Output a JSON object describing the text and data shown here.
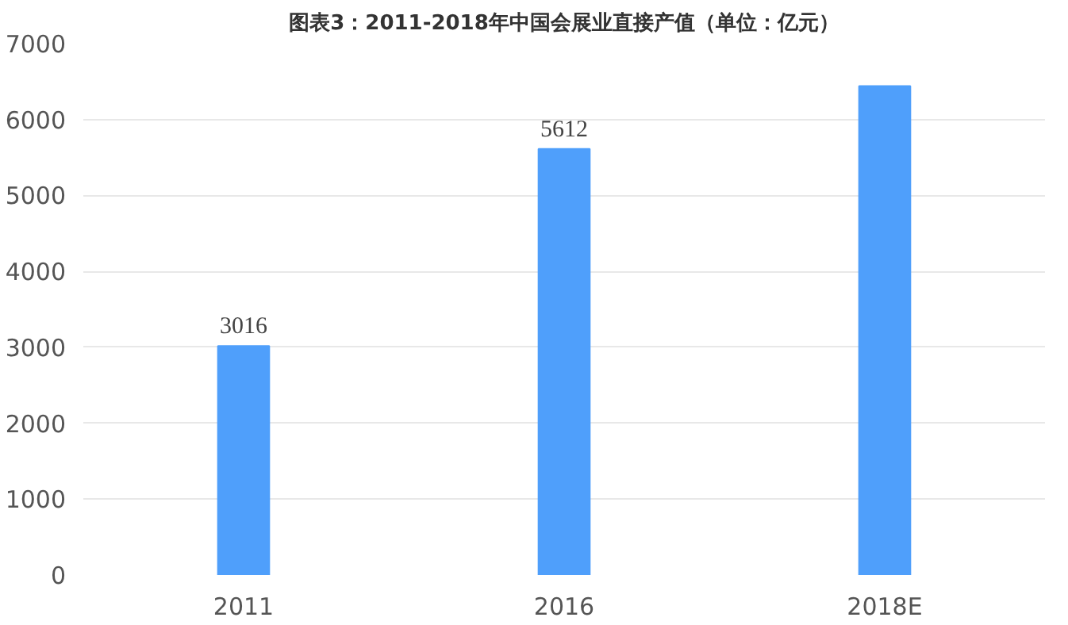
{
  "chart_data": {
    "type": "bar",
    "title": "图表3：2011-2018年中国会展业直接产值（单位：亿元）",
    "categories": [
      "2011",
      "2016",
      "2018E"
    ],
    "values": [
      3016,
      5612,
      6440
    ],
    "value_labels": [
      "3016",
      "5612",
      null
    ],
    "color": "#4f9ffb",
    "ylim": [
      0,
      7000
    ],
    "yticks": [
      0,
      1000,
      2000,
      3000,
      4000,
      5000,
      6000,
      7000
    ],
    "grid": "y"
  }
}
